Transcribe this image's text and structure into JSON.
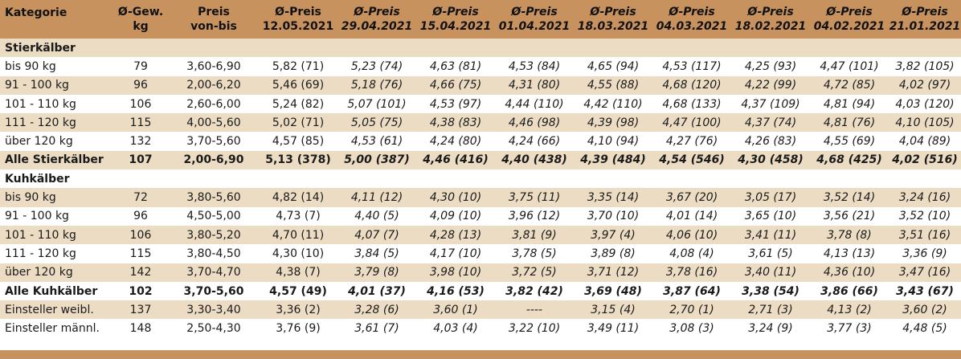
{
  "headers": [
    {
      "line1": "Kategorie",
      "line2": ""
    },
    {
      "line1": "Ø-Gew.",
      "line2": "kg"
    },
    {
      "line1": "Preis",
      "line2": "von-bis"
    },
    {
      "line1": "Ø-Preis",
      "line2": "12.05.2021"
    },
    {
      "line1": "Ø-Preis",
      "line2": "29.04.2021"
    },
    {
      "line1": "Ø-Preis",
      "line2": "15.04.2021"
    },
    {
      "line1": "Ø-Preis",
      "line2": "01.04.2021"
    },
    {
      "line1": "Ø-Preis",
      "line2": "18.03.2021"
    },
    {
      "line1": "Ø-Preis",
      "line2": "04.03.2021"
    },
    {
      "line1": "Ø-Preis",
      "line2": "18.02.2021"
    },
    {
      "line1": "Ø-Preis",
      "line2": "04.02.2021"
    },
    {
      "line1": "Ø-Preis",
      "line2": "21.01.2021"
    }
  ],
  "sections": {
    "stier": "Stierkälber",
    "kuh": "Kuhkälber"
  },
  "rows": {
    "s1": [
      "bis 90 kg",
      "79",
      "3,60-6,90",
      "5,82 (71)",
      "5,23 (74)",
      "4,63 (81)",
      "4,53 (84)",
      "4,65 (94)",
      "4,53 (117)",
      "4,25 (93)",
      "4,47 (101)",
      "3,82 (105)"
    ],
    "s2": [
      "91 - 100 kg",
      "96",
      "2,00-6,20",
      "5,46 (69)",
      "5,18 (76)",
      "4,66 (75)",
      "4,31 (80)",
      "4,55 (88)",
      "4,68 (120)",
      "4,22 (99)",
      "4,72 (85)",
      "4,02 (97)"
    ],
    "s3": [
      "101 - 110 kg",
      "106",
      "2,60-6,00",
      "5,24 (82)",
      "5,07 (101)",
      "4,53 (97)",
      "4,44 (110)",
      "4,42 (110)",
      "4,68 (133)",
      "4,37 (109)",
      "4,81 (94)",
      "4,03 (120)"
    ],
    "s4": [
      "111 - 120 kg",
      "115",
      "4,00-5,60",
      "5,02 (71)",
      "5,05 (75)",
      "4,38 (83)",
      "4,46 (98)",
      "4,39 (98)",
      "4,47 (100)",
      "4,37 (74)",
      "4,81 (76)",
      "4,10 (105)"
    ],
    "s5": [
      "über 120 kg",
      "132",
      "3,70-5,60",
      "4,57 (85)",
      "4,53 (61)",
      "4,24 (80)",
      "4,24 (66)",
      "4,10 (94)",
      "4,27 (76)",
      "4,26 (83)",
      "4,55 (69)",
      "4,04 (89)"
    ],
    "st": [
      "Alle Stierkälber",
      "107",
      "2,00-6,90",
      "5,13 (378)",
      "5,00 (387)",
      "4,46 (416)",
      "4,40 (438)",
      "4,39 (484)",
      "4,54 (546)",
      "4,30 (458)",
      "4,68 (425)",
      "4,02 (516)"
    ],
    "k1": [
      "bis 90 kg",
      "72",
      "3,80-5,60",
      "4,82 (14)",
      "4,11 (12)",
      "4,30 (10)",
      "3,75 (11)",
      "3,35 (14)",
      "3,67 (20)",
      "3,05 (17)",
      "3,52 (14)",
      "3,24 (16)"
    ],
    "k2": [
      "91 - 100 kg",
      "96",
      "4,50-5,00",
      "4,73 (7)",
      "4,40 (5)",
      "4,09 (10)",
      "3,96 (12)",
      "3,70 (10)",
      "4,01 (14)",
      "3,65 (10)",
      "3,56 (21)",
      "3,52 (10)"
    ],
    "k3": [
      "101 - 110 kg",
      "106",
      "3,80-5,20",
      "4,70 (11)",
      "4,07 (7)",
      "4,28 (13)",
      "3,81 (9)",
      "3,97 (4)",
      "4,06 (10)",
      "3,41 (11)",
      "3,78 (8)",
      "3,51 (16)"
    ],
    "k4": [
      "111 - 120 kg",
      "115",
      "3,80-4,50",
      "4,30 (10)",
      "3,84 (5)",
      "4,17 (10)",
      "3,78 (5)",
      "3,89 (8)",
      "4,08 (4)",
      "3,61 (5)",
      "4,13 (13)",
      "3,36 (9)"
    ],
    "k5": [
      "über 120 kg",
      "142",
      "3,70-4,70",
      "4,38 (7)",
      "3,79 (8)",
      "3,98 (10)",
      "3,72 (5)",
      "3,71 (12)",
      "3,78 (16)",
      "3,40 (11)",
      "4,36 (10)",
      "3,47 (16)"
    ],
    "kt": [
      "Alle Kuhkälber",
      "102",
      "3,70-5,60",
      "4,57 (49)",
      "4,01 (37)",
      "4,16 (53)",
      "3,82 (42)",
      "3,69 (48)",
      "3,87 (64)",
      "3,38 (54)",
      "3,86 (66)",
      "3,43 (67)"
    ],
    "e1": [
      "Einsteller weibl.",
      "137",
      "3,30-3,40",
      "3,36 (2)",
      "3,28 (6)",
      "3,60 (1)",
      "----",
      "3,15 (4)",
      "2,70 (1)",
      "2,71 (3)",
      "4,13 (2)",
      "3,60 (2)"
    ],
    "e2": [
      "Einsteller männl.",
      "148",
      "2,50-4,30",
      "3,76 (9)",
      "3,61 (7)",
      "4,03 (4)",
      "3,22 (10)",
      "3,49 (11)",
      "3,08 (3)",
      "3,24 (9)",
      "3,77 (3)",
      "4,48 (5)"
    ]
  },
  "colors": {
    "header": "#c8925f",
    "band": "#ecdcc3",
    "white": "#ffffff"
  }
}
